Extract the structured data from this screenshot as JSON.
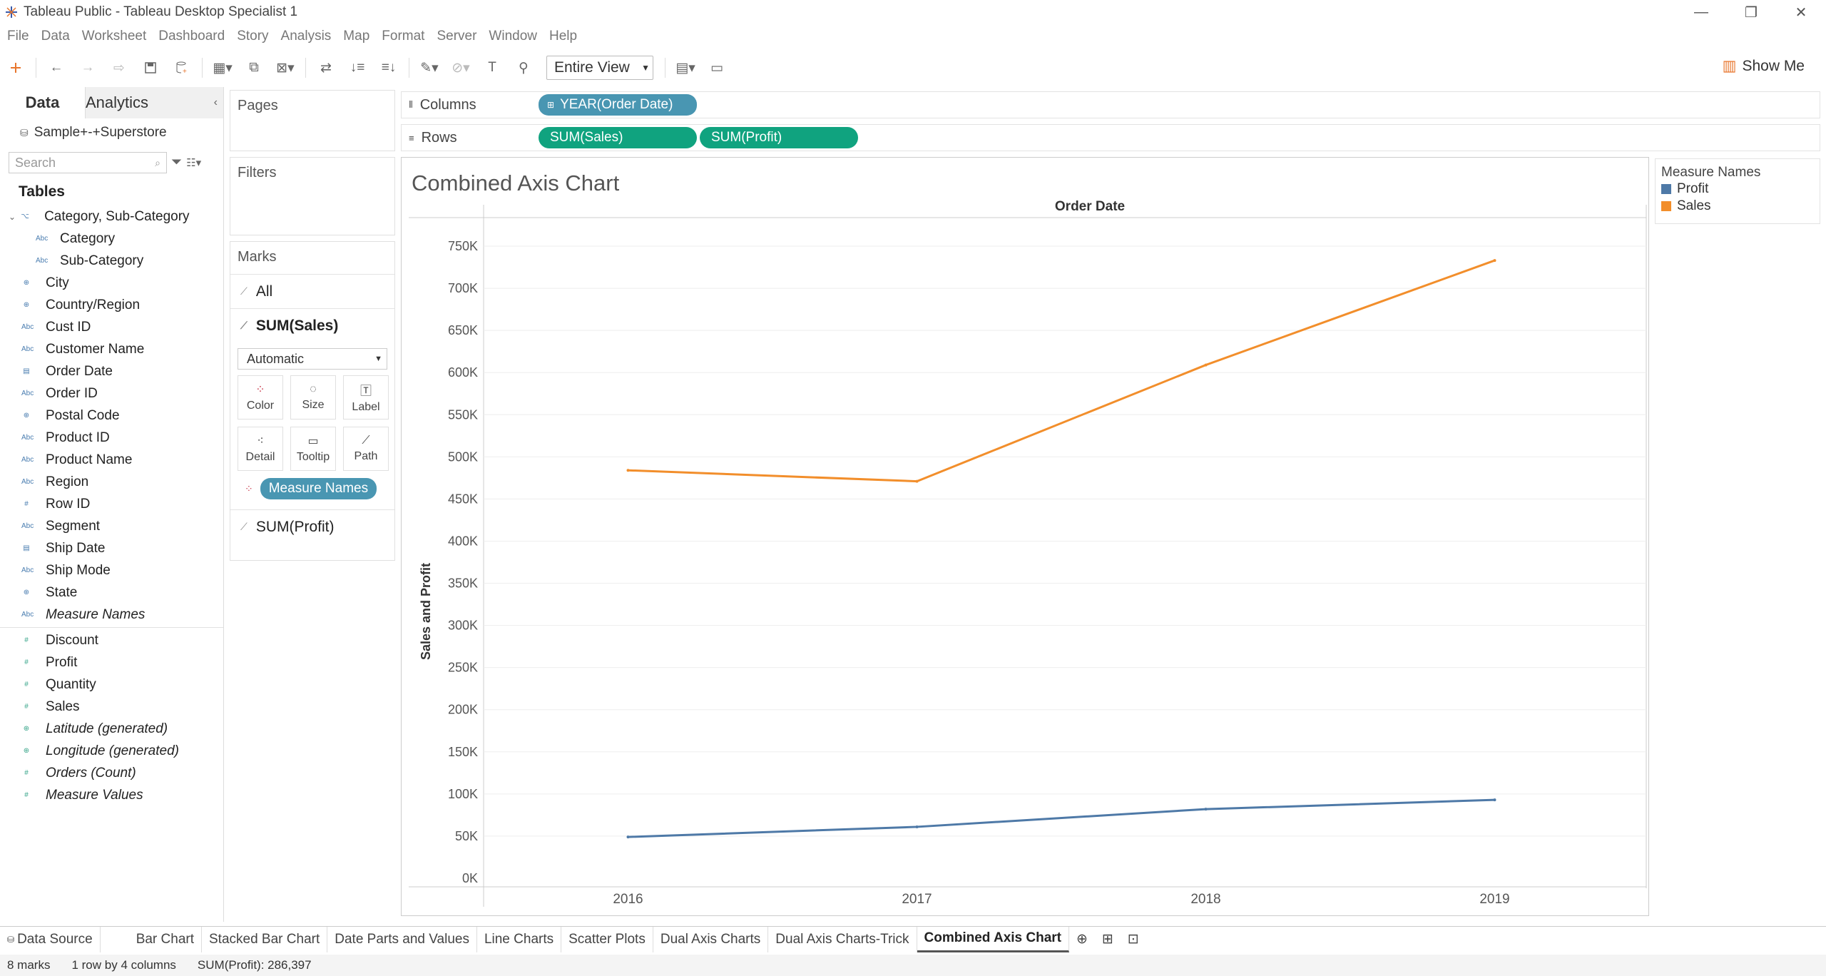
{
  "window": {
    "title": "Tableau Public - Tableau Desktop Specialist 1"
  },
  "menu": [
    "File",
    "Data",
    "Worksheet",
    "Dashboard",
    "Story",
    "Analysis",
    "Map",
    "Format",
    "Server",
    "Window",
    "Help"
  ],
  "toolbar": {
    "view_value": "Entire View",
    "show_me": "Show Me"
  },
  "datapane": {
    "tab_data": "Data",
    "tab_analytics": "Analytics",
    "datasource": "Sample+-+Superstore",
    "search_placeholder": "Search",
    "tables_heading": "Tables",
    "dimensions": [
      {
        "label": "Category, Sub-Category",
        "icon": "hierarchy-icon"
      },
      {
        "label": "Category",
        "icon": "abc-icon",
        "indent": true
      },
      {
        "label": "Sub-Category",
        "icon": "abc-icon",
        "indent": true
      },
      {
        "label": "City",
        "icon": "globe-icon"
      },
      {
        "label": "Country/Region",
        "icon": "globe-icon"
      },
      {
        "label": "Cust ID",
        "icon": "abc-icon"
      },
      {
        "label": "Customer Name",
        "icon": "abc-icon"
      },
      {
        "label": "Order Date",
        "icon": "calendar-icon"
      },
      {
        "label": "Order ID",
        "icon": "abc-icon"
      },
      {
        "label": "Postal Code",
        "icon": "globe-icon"
      },
      {
        "label": "Product ID",
        "icon": "abc-icon"
      },
      {
        "label": "Product Name",
        "icon": "abc-icon"
      },
      {
        "label": "Region",
        "icon": "abc-icon"
      },
      {
        "label": "Row ID",
        "icon": "hash-icon"
      },
      {
        "label": "Segment",
        "icon": "abc-icon"
      },
      {
        "label": "Ship Date",
        "icon": "calendar-icon"
      },
      {
        "label": "Ship Mode",
        "icon": "abc-icon"
      },
      {
        "label": "State",
        "icon": "globe-icon"
      },
      {
        "label": "Measure Names",
        "icon": "abc-icon",
        "italic": true
      }
    ],
    "measures": [
      {
        "label": "Discount",
        "icon": "hash-icon"
      },
      {
        "label": "Profit",
        "icon": "hash-icon"
      },
      {
        "label": "Quantity",
        "icon": "hash-icon"
      },
      {
        "label": "Sales",
        "icon": "hash-icon"
      },
      {
        "label": "Latitude (generated)",
        "icon": "globe-icon",
        "italic": true
      },
      {
        "label": "Longitude (generated)",
        "icon": "globe-icon",
        "italic": true
      },
      {
        "label": "Orders (Count)",
        "icon": "hash-icon",
        "italic": true
      },
      {
        "label": "Measure Values",
        "icon": "hash-icon",
        "italic": true
      }
    ]
  },
  "cards": {
    "pages": "Pages",
    "filters": "Filters",
    "marks": "Marks",
    "marks_all": "All",
    "marks_sales": "SUM(Sales)",
    "marks_profit": "SUM(Profit)",
    "mark_type": "Automatic",
    "btn_color": "Color",
    "btn_size": "Size",
    "btn_label": "Label",
    "btn_detail": "Detail",
    "btn_tooltip": "Tooltip",
    "btn_path": "Path",
    "color_pill": "Measure Names"
  },
  "shelves": {
    "columns_label": "Columns",
    "rows_label": "Rows",
    "columns_pill": "YEAR(Order Date)",
    "rows_pill_1": "SUM(Sales)",
    "rows_pill_2": "SUM(Profit)"
  },
  "legend": {
    "title": "Measure Names",
    "items": [
      {
        "label": "Profit",
        "color": "#4e79a7"
      },
      {
        "label": "Sales",
        "color": "#f28e2b"
      }
    ]
  },
  "chart_data": {
    "type": "line",
    "title": "Combined Axis Chart",
    "xlabel": "Order Date",
    "ylabel": "Sales and Profit",
    "categories": [
      "2016",
      "2017",
      "2018",
      "2019"
    ],
    "ylim": [
      0,
      750000
    ],
    "yticks": [
      "0K",
      "50K",
      "100K",
      "150K",
      "200K",
      "250K",
      "300K",
      "350K",
      "400K",
      "450K",
      "500K",
      "550K",
      "600K",
      "650K",
      "700K",
      "750K"
    ],
    "series": [
      {
        "name": "Sales",
        "color": "#f28e2b",
        "values": [
          484000,
          471000,
          609000,
          733000
        ]
      },
      {
        "name": "Profit",
        "color": "#4e79a7",
        "values": [
          49000,
          61000,
          82000,
          93000
        ]
      }
    ],
    "grid": true
  },
  "sheet_tabs": [
    "Bar Chart",
    "Stacked Bar Chart",
    "Date Parts and Values",
    "Line Charts",
    "Scatter Plots",
    "Dual Axis Charts",
    "Dual Axis Charts-Trick",
    "Combined Axis Chart"
  ],
  "data_source_tab": "Data Source",
  "status": {
    "marks": "8 marks",
    "dims": "1 row by 4 columns",
    "sum": "SUM(Profit): 286,397"
  }
}
